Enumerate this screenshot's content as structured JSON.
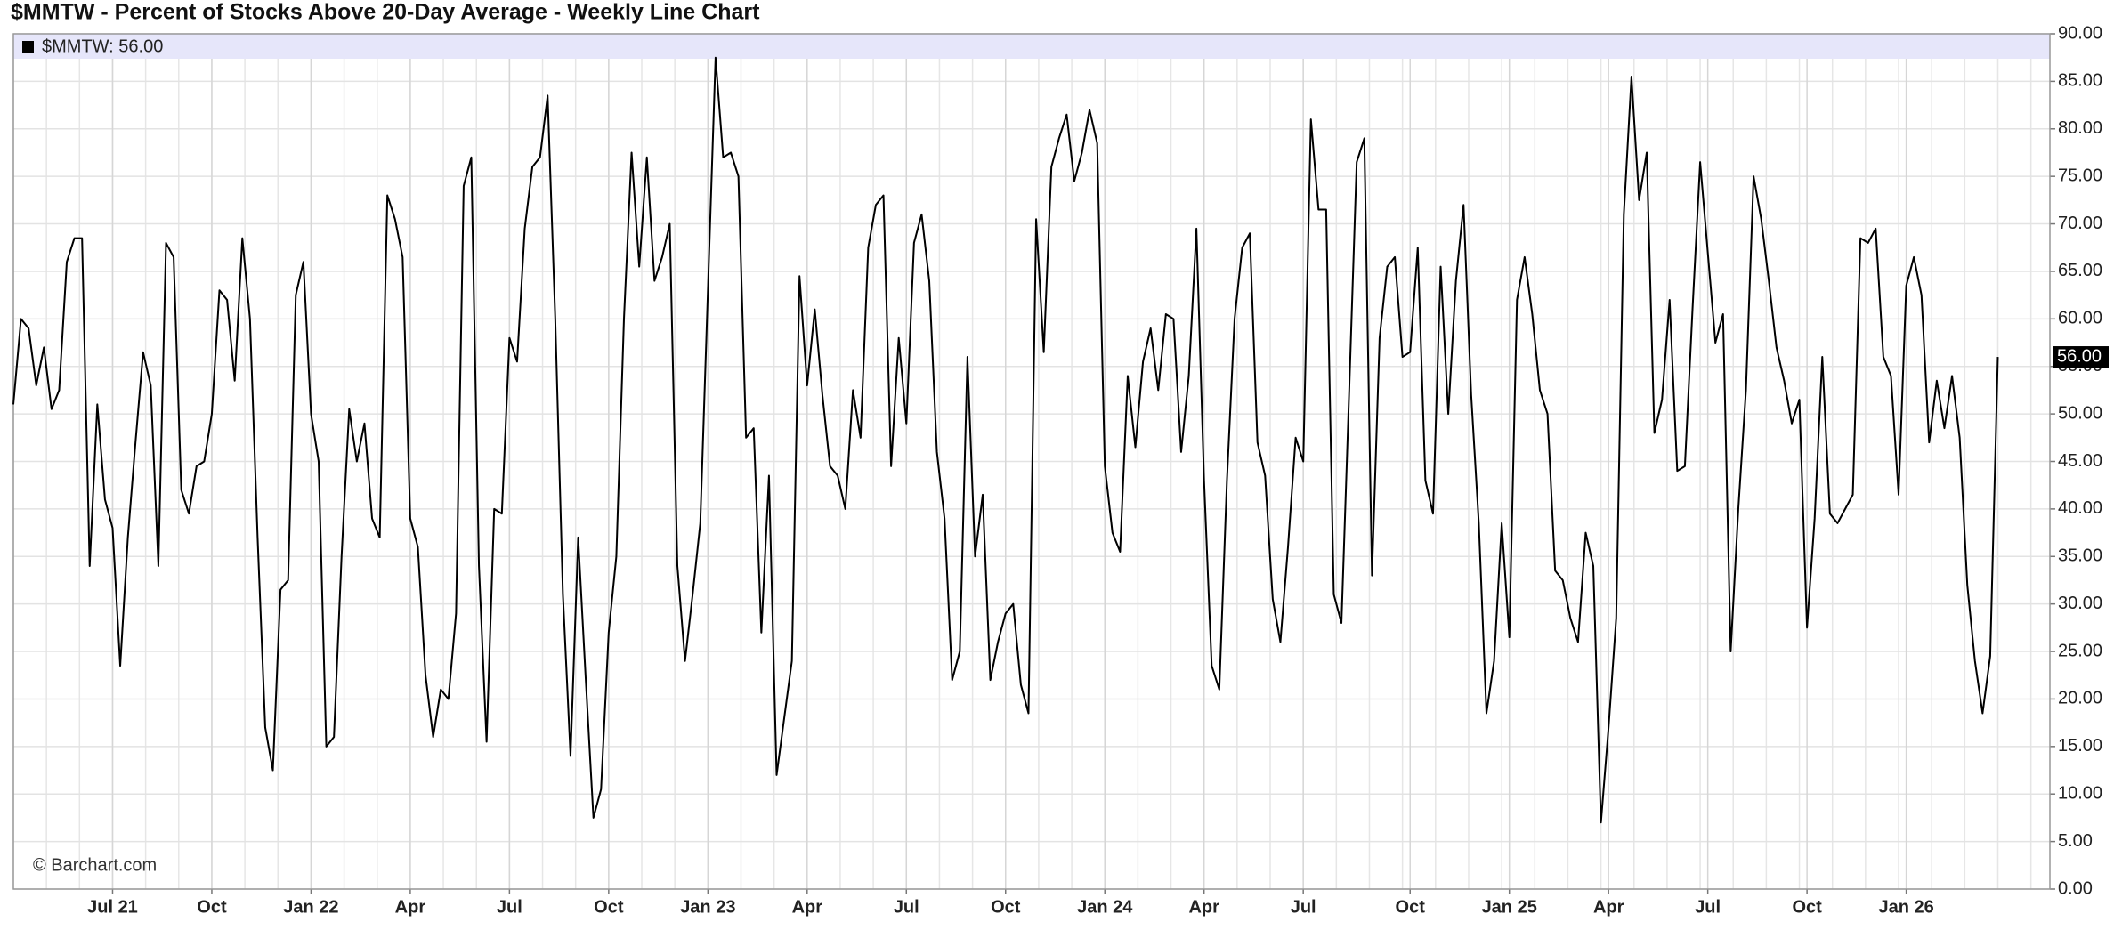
{
  "chart_data": {
    "type": "line",
    "title": "$MMTW - Percent of Stocks Above 20-Day Average - Weekly Line Chart",
    "watermark": "© Barchart.com",
    "last_value_label": "56.00",
    "categories": [
      null,
      null,
      null,
      null,
      null,
      null,
      null,
      null,
      null,
      null,
      null,
      null,
      null,
      "Jul 21",
      null,
      null,
      null,
      null,
      null,
      null,
      null,
      null,
      null,
      null,
      null,
      null,
      "Oct",
      null,
      null,
      null,
      null,
      null,
      null,
      null,
      null,
      null,
      null,
      null,
      null,
      "Jan 22",
      null,
      null,
      null,
      null,
      null,
      null,
      null,
      null,
      null,
      null,
      null,
      null,
      "Apr",
      null,
      null,
      null,
      null,
      null,
      null,
      null,
      null,
      null,
      null,
      null,
      null,
      "Jul",
      null,
      null,
      null,
      null,
      null,
      null,
      null,
      null,
      null,
      null,
      null,
      null,
      "Oct",
      null,
      null,
      null,
      null,
      null,
      null,
      null,
      null,
      null,
      null,
      null,
      null,
      "Jan 23",
      null,
      null,
      null,
      null,
      null,
      null,
      null,
      null,
      null,
      null,
      null,
      null,
      "Apr",
      null,
      null,
      null,
      null,
      null,
      null,
      null,
      null,
      null,
      null,
      null,
      null,
      "Jul",
      null,
      null,
      null,
      null,
      null,
      null,
      null,
      null,
      null,
      null,
      null,
      null,
      "Oct",
      null,
      null,
      null,
      null,
      null,
      null,
      null,
      null,
      null,
      null,
      null,
      null,
      "Jan 24",
      null,
      null,
      null,
      null,
      null,
      null,
      null,
      null,
      null,
      null,
      null,
      null,
      "Apr",
      null,
      null,
      null,
      null,
      null,
      null,
      null,
      null,
      null,
      null,
      null,
      null,
      "Jul",
      null,
      null,
      null,
      null,
      null,
      null,
      null,
      null,
      null,
      null,
      null,
      null,
      null,
      "Oct",
      null,
      null,
      null,
      null,
      null,
      null,
      null,
      null,
      null,
      null,
      null,
      null,
      "Jan 25",
      null,
      null,
      null,
      null,
      null,
      null,
      null,
      null,
      null,
      null,
      null,
      null,
      "Apr",
      null,
      null,
      null,
      null,
      null,
      null,
      null,
      null,
      null,
      null,
      null,
      null,
      "Jul",
      null,
      null,
      null,
      null,
      null,
      null,
      null,
      null,
      null,
      null,
      null,
      null,
      "Oct",
      null,
      null,
      null,
      null,
      null,
      null,
      null,
      null,
      null,
      null,
      null,
      null,
      "Jan 26",
      null,
      null,
      null,
      null,
      null,
      null,
      null,
      null,
      null,
      null,
      null,
      null
    ],
    "series": [
      {
        "name": "$MMTW: 56.00",
        "color": "#000000",
        "values": [
          51,
          60,
          59,
          53,
          57,
          50.5,
          52.5,
          66,
          68.5,
          68.5,
          34,
          51,
          41,
          38,
          23.5,
          37,
          47,
          56.5,
          53,
          34,
          68,
          66.5,
          42,
          39.5,
          44.5,
          45,
          50,
          63,
          62,
          53.5,
          68.5,
          60,
          37,
          17,
          12.5,
          31.5,
          32.5,
          62.5,
          66,
          50,
          45,
          15,
          16,
          35,
          50.5,
          45,
          49,
          39,
          37,
          73,
          70.5,
          66.5,
          39,
          36,
          22.5,
          16,
          21,
          20,
          29,
          74,
          77,
          34,
          15.5,
          40,
          39.5,
          58,
          55.5,
          69.5,
          76,
          77,
          83.5,
          60,
          31,
          14,
          37,
          22,
          7.5,
          10.5,
          27,
          35,
          60,
          77.5,
          65.5,
          77,
          64,
          66.5,
          70,
          34,
          24,
          31,
          38.5,
          63,
          87.5,
          77,
          77.5,
          75,
          47.5,
          48.5,
          27,
          43.5,
          12,
          18,
          24,
          64.5,
          53,
          61,
          52,
          44.5,
          43.5,
          40,
          52.5,
          47.5,
          67.5,
          72,
          73,
          44.5,
          58,
          49,
          68,
          71,
          64,
          46,
          39,
          22,
          25,
          56,
          35,
          41.5,
          22,
          26,
          29,
          30,
          21.5,
          18.5,
          70.5,
          56.5,
          76,
          79,
          81.5,
          74.5,
          77.5,
          82,
          78.5,
          44.5,
          37.5,
          35.5,
          54,
          46.5,
          55.5,
          59,
          52.5,
          60.5,
          60,
          46,
          54,
          69.5,
          43,
          23.5,
          21,
          43,
          60,
          67.5,
          69,
          47,
          43.5,
          30.5,
          26,
          36,
          47.5,
          45,
          81,
          71.5,
          71.5,
          31,
          28,
          52,
          76.5,
          79,
          33,
          58,
          65.5,
          66.5,
          56,
          56.5,
          67.5,
          43,
          39.5,
          65.5,
          50,
          64,
          72,
          52,
          38.5,
          18.5,
          24,
          38.5,
          26.5,
          62,
          66.5,
          60.5,
          52.5,
          50,
          33.5,
          32.5,
          28.5,
          26,
          37.5,
          34,
          7,
          17,
          28.5,
          71,
          85.5,
          72.5,
          77.5,
          48,
          51.5,
          62,
          44,
          44.5,
          61,
          76.5,
          67,
          57.5,
          60.5,
          25,
          40,
          52.5,
          75,
          70.5,
          64,
          57,
          53.5,
          49,
          51.5,
          27.5,
          39,
          56,
          39.5,
          38.5,
          40,
          41.5,
          68.5,
          68,
          69.5,
          56,
          54,
          41.5,
          63.5,
          66.5,
          62.5,
          47,
          53.5,
          48.5,
          54,
          47.5,
          32,
          24,
          18.5,
          24.5,
          56
        ]
      }
    ],
    "ylim": [
      0,
      90
    ],
    "yticks": [
      {
        "value": 0,
        "label": "0.00"
      },
      {
        "value": 5,
        "label": "5.00"
      },
      {
        "value": 10,
        "label": "10.00"
      },
      {
        "value": 15,
        "label": "15.00"
      },
      {
        "value": 20,
        "label": "20.00"
      },
      {
        "value": 25,
        "label": "25.00"
      },
      {
        "value": 30,
        "label": "30.00"
      },
      {
        "value": 35,
        "label": "35.00"
      },
      {
        "value": 40,
        "label": "40.00"
      },
      {
        "value": 45,
        "label": "45.00"
      },
      {
        "value": 50,
        "label": "50.00"
      },
      {
        "value": 55,
        "label": "55.00"
      },
      {
        "value": 60,
        "label": "60.00"
      },
      {
        "value": 65,
        "label": "65.00"
      },
      {
        "value": 70,
        "label": "70.00"
      },
      {
        "value": 75,
        "label": "75.00"
      },
      {
        "value": 80,
        "label": "80.00"
      },
      {
        "value": 85,
        "label": "85.00"
      },
      {
        "value": 90,
        "label": "90.00"
      }
    ],
    "grid": true,
    "legend": "top-left",
    "legend_band_color": "#e6e6fa"
  }
}
